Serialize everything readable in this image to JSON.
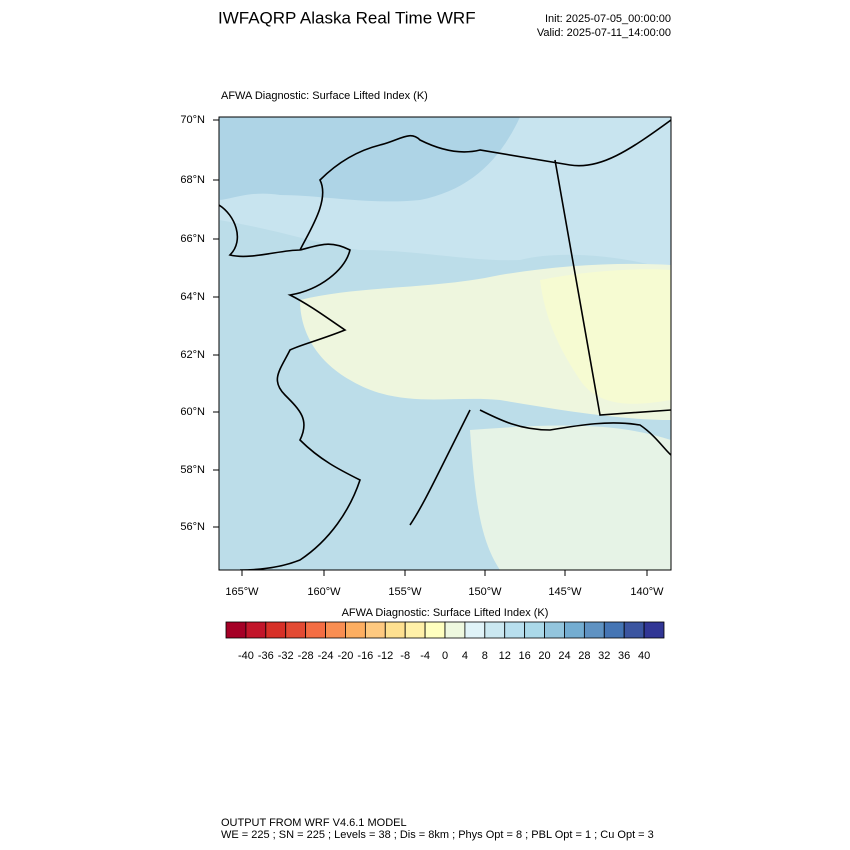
{
  "header": {
    "title": "IWFAQRP Alaska Real Time WRF",
    "init": "Init: 2025-07-05_00:00:00",
    "valid": "Valid: 2025-07-11_14:00:00"
  },
  "map": {
    "title": "AFWA Diagnostic: Surface Lifted Index   (K)",
    "lat_labels": [
      "70°N",
      "68°N",
      "66°N",
      "64°N",
      "62°N",
      "60°N",
      "58°N",
      "56°N"
    ],
    "lon_labels": [
      "165°W",
      "160°W",
      "155°W",
      "150°W",
      "145°W",
      "140°W"
    ]
  },
  "colorbar": {
    "title": "AFWA Diagnostic: Surface Lifted Index  (K)",
    "labels": [
      -40,
      -36,
      -32,
      -28,
      -24,
      -20,
      -16,
      -12,
      -8,
      -4,
      0,
      4,
      8,
      12,
      16,
      20,
      24,
      28,
      32,
      36,
      40
    ],
    "colors": [
      "#a50026",
      "#c2152a",
      "#d73027",
      "#e34a33",
      "#f46d43",
      "#f98e52",
      "#fdae61",
      "#fec980",
      "#fee090",
      "#fff0a8",
      "#ffffbf",
      "#eef8df",
      "#e0f3f8",
      "#cbe8f1",
      "#b8dfee",
      "#abd9e9",
      "#93c5dd",
      "#74add1",
      "#5f92c2",
      "#4575b4",
      "#3b55a0",
      "#313695"
    ]
  },
  "footer": {
    "line1": "OUTPUT FROM WRF V4.6.1 MODEL",
    "line2": "WE = 225 ; SN = 225 ; Levels = 38 ; Dis = 8km ; Phys Opt = 8 ; PBL Opt = 1 ; Cu Opt = 3"
  }
}
